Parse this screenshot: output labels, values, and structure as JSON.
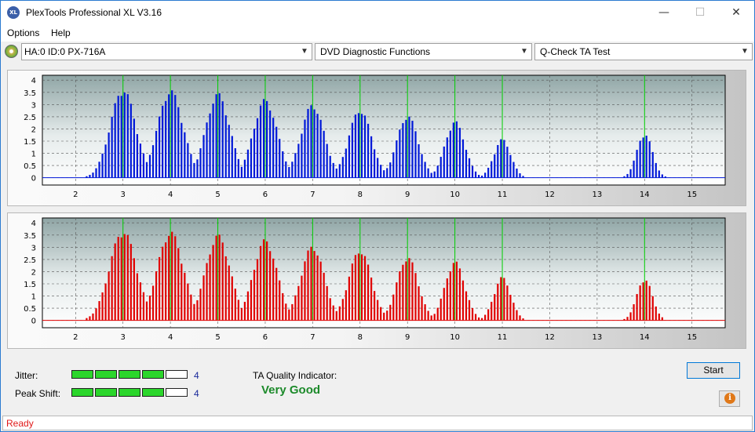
{
  "window": {
    "title": "PlexTools Professional XL V3.16",
    "icon": "XL",
    "minimize": "—",
    "maximize": "☐",
    "close": "✕"
  },
  "menu": {
    "options": "Options",
    "help": "Help"
  },
  "toolbar": {
    "device": "HA:0 ID:0  PX-716A",
    "function": "DVD Diagnostic Functions",
    "test": "Q-Check TA Test"
  },
  "results": {
    "jitter_label": "Jitter:",
    "jitter_value": "4",
    "jitter_segments": 5,
    "jitter_filled": 4,
    "peak_label": "Peak Shift:",
    "peak_value": "4",
    "peak_segments": 5,
    "peak_filled": 4,
    "ta_label": "TA Quality Indicator:",
    "ta_value": "Very Good",
    "ta_color": "#1c8a2a"
  },
  "buttons": {
    "start": "Start",
    "info": "i"
  },
  "status": {
    "text": "Ready"
  },
  "chart_data": [
    {
      "type": "bar",
      "color": "#0018d8",
      "xlim": [
        1.3,
        15.7
      ],
      "ylim": [
        -0.3,
        4.2
      ],
      "x_ticks": [
        "2",
        "3",
        "4",
        "5",
        "6",
        "7",
        "8",
        "9",
        "10",
        "11",
        "12",
        "13",
        "14",
        "15"
      ],
      "y_ticks": [
        "0",
        "0.5",
        "1",
        "1.5",
        "2",
        "2.5",
        "3",
        "3.5",
        "4"
      ],
      "marker_color": "#00d000",
      "markers": [
        3,
        4,
        5,
        6,
        7,
        8,
        9,
        10,
        11,
        14
      ],
      "peaks": [
        {
          "center": 3.0,
          "height": 3.7,
          "width": 0.36
        },
        {
          "center": 4.0,
          "height": 3.65,
          "width": 0.36
        },
        {
          "center": 5.0,
          "height": 3.5,
          "width": 0.34
        },
        {
          "center": 6.0,
          "height": 3.25,
          "width": 0.34
        },
        {
          "center": 7.0,
          "height": 3.05,
          "width": 0.33
        },
        {
          "center": 8.0,
          "height": 2.85,
          "width": 0.32
        },
        {
          "center": 9.0,
          "height": 2.6,
          "width": 0.3
        },
        {
          "center": 10.0,
          "height": 2.35,
          "width": 0.28
        },
        {
          "center": 11.0,
          "height": 1.6,
          "width": 0.24
        },
        {
          "center": 14.0,
          "height": 1.85,
          "width": 0.22
        }
      ]
    },
    {
      "type": "bar",
      "color": "#e00000",
      "xlim": [
        1.3,
        15.7
      ],
      "ylim": [
        -0.3,
        4.2
      ],
      "x_ticks": [
        "2",
        "3",
        "4",
        "5",
        "6",
        "7",
        "8",
        "9",
        "10",
        "11",
        "12",
        "13",
        "14",
        "15"
      ],
      "y_ticks": [
        "0",
        "0.5",
        "1",
        "1.5",
        "2",
        "2.5",
        "3",
        "3.5",
        "4"
      ],
      "marker_color": "#00d000",
      "markers": [
        3,
        4,
        5,
        6,
        7,
        8,
        9,
        10,
        11,
        14
      ],
      "peaks": [
        {
          "center": 3.0,
          "height": 3.75,
          "width": 0.38
        },
        {
          "center": 4.0,
          "height": 3.7,
          "width": 0.37
        },
        {
          "center": 5.0,
          "height": 3.55,
          "width": 0.35
        },
        {
          "center": 6.0,
          "height": 3.35,
          "width": 0.34
        },
        {
          "center": 7.0,
          "height": 3.1,
          "width": 0.33
        },
        {
          "center": 8.0,
          "height": 2.95,
          "width": 0.32
        },
        {
          "center": 9.0,
          "height": 2.65,
          "width": 0.3
        },
        {
          "center": 10.0,
          "height": 2.45,
          "width": 0.28
        },
        {
          "center": 11.0,
          "height": 1.8,
          "width": 0.24
        },
        {
          "center": 14.0,
          "height": 1.75,
          "width": 0.22
        }
      ]
    }
  ]
}
